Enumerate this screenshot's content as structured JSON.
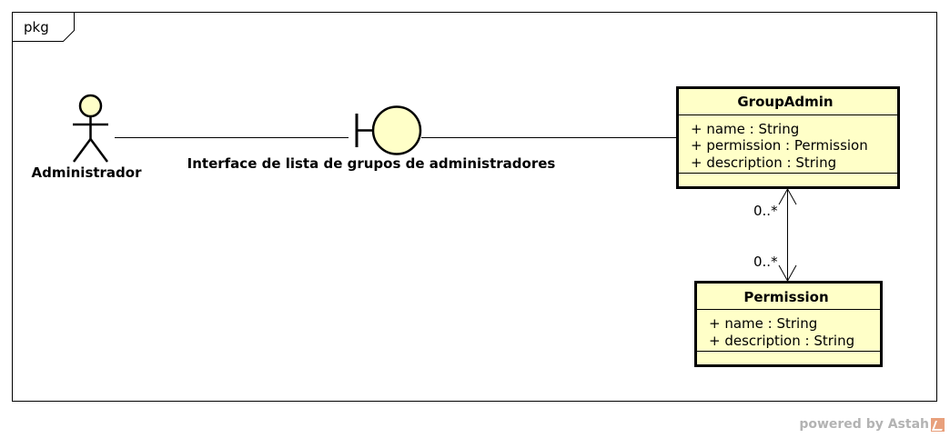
{
  "frame": {
    "label": "pkg"
  },
  "actor": {
    "name": "Administrador"
  },
  "boundary": {
    "name": "Interface de lista de grupos de administradores"
  },
  "classes": {
    "group_admin": {
      "name": "GroupAdmin",
      "attributes": [
        "+ name : String",
        "+ permission : Permission",
        "+ description : String"
      ]
    },
    "permission": {
      "name": "Permission",
      "attributes": [
        "+ name : String",
        "+ description : String"
      ]
    }
  },
  "association": {
    "source_multiplicity": "0..*",
    "target_multiplicity": "0..*"
  },
  "footer": {
    "text": "powered by Astah"
  },
  "colors": {
    "fill": "#ffffc8",
    "stroke": "#000000",
    "footer": "#b3b3b3"
  }
}
